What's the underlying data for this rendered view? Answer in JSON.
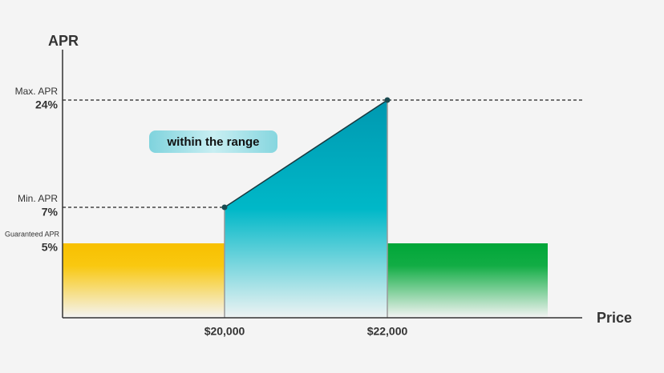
{
  "y_axis_label": "APR",
  "x_axis_label": "Price",
  "y_labels": [
    {
      "caption": "Max. APR",
      "value": "24%"
    },
    {
      "caption": "Min. APR",
      "value": "7%"
    },
    {
      "caption": "Guaranteed APR",
      "value": "5%"
    }
  ],
  "x_labels": [
    "$20,000",
    "$22,000"
  ],
  "annotation": "within the range"
}
